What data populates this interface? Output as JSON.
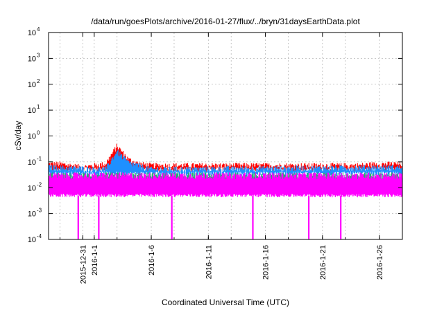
{
  "chart_data": {
    "type": "line",
    "title": "/data/run/goesPlots/archive/2016-01-27/flux/../bryn/31daysEarthData.plot",
    "xlabel": "Coordinated Universal Time (UTC)",
    "ylabel": "cSv/day",
    "yscale": "log",
    "ylim": [
      0.0001,
      10000
    ],
    "xlim": [
      "2015-12-28",
      "2016-01-28"
    ],
    "y_ticks": [
      {
        "base": "10",
        "exp": "-4",
        "value": 0.0001
      },
      {
        "base": "10",
        "exp": "-3",
        "value": 0.001
      },
      {
        "base": "10",
        "exp": "-2",
        "value": 0.01
      },
      {
        "base": "10",
        "exp": "-1",
        "value": 0.1
      },
      {
        "base": "10",
        "exp": "0",
        "value": 1
      },
      {
        "base": "10",
        "exp": "1",
        "value": 10
      },
      {
        "base": "10",
        "exp": "2",
        "value": 100
      },
      {
        "base": "10",
        "exp": "3",
        "value": 1000
      },
      {
        "base": "10",
        "exp": "4",
        "value": 10000
      }
    ],
    "x_ticks": [
      {
        "date": "2015-12-31",
        "label": "2015-12-31"
      },
      {
        "date": "2016-01-01",
        "label": "2016-1-1"
      },
      {
        "date": "2016-01-06",
        "label": "2016-1-6"
      },
      {
        "date": "2016-01-11",
        "label": "2016-1-11"
      },
      {
        "date": "2016-01-16",
        "label": "2016-1-16"
      },
      {
        "date": "2016-01-21",
        "label": "2016-1-21"
      },
      {
        "date": "2016-01-26",
        "label": "2016-1-26"
      }
    ],
    "x_grid_dates": [
      "2015-12-29",
      "2015-12-31",
      "2016-01-01",
      "2016-01-03",
      "2016-01-06",
      "2016-01-08",
      "2016-01-11",
      "2016-01-13",
      "2016-01-16",
      "2016-01-18",
      "2016-01-21",
      "2016-01-23",
      "2016-01-26",
      "2016-01-28"
    ],
    "grid": true,
    "legend": "none",
    "series": [
      {
        "color": "#ff0000",
        "baseline": 0.075,
        "envelope": [
          {
            "date": "2015-12-28",
            "y": 0.08
          },
          {
            "date": "2015-12-29",
            "y": 0.08
          },
          {
            "date": "2015-12-30",
            "y": 0.07
          },
          {
            "date": "2015-12-31",
            "y": 0.06
          },
          {
            "date": "2016-01-01",
            "y": 0.07
          },
          {
            "date": "2016-01-02",
            "y": 0.08
          },
          {
            "date": "2016-01-03",
            "y": 0.4
          },
          {
            "date": "2016-01-04",
            "y": 0.12
          },
          {
            "date": "2016-01-05",
            "y": 0.08
          },
          {
            "date": "2016-01-06",
            "y": 0.07
          },
          {
            "date": "2016-01-08",
            "y": 0.07
          },
          {
            "date": "2016-01-10",
            "y": 0.07
          },
          {
            "date": "2016-01-12",
            "y": 0.07
          },
          {
            "date": "2016-01-14",
            "y": 0.07
          },
          {
            "date": "2016-01-16",
            "y": 0.07
          },
          {
            "date": "2016-01-18",
            "y": 0.07
          },
          {
            "date": "2016-01-20",
            "y": 0.07
          },
          {
            "date": "2016-01-22",
            "y": 0.07
          },
          {
            "date": "2016-01-24",
            "y": 0.07
          },
          {
            "date": "2016-01-26",
            "y": 0.08
          },
          {
            "date": "2016-01-28",
            "y": 0.08
          }
        ]
      },
      {
        "color": "#1e90ff",
        "baseline": 0.05,
        "envelope": [
          {
            "date": "2015-12-28",
            "y": 0.06
          },
          {
            "date": "2016-01-02",
            "y": 0.05
          },
          {
            "date": "2016-01-03",
            "y": 0.25
          },
          {
            "date": "2016-01-04",
            "y": 0.09
          },
          {
            "date": "2016-01-06",
            "y": 0.05
          },
          {
            "date": "2016-01-28",
            "y": 0.06
          }
        ]
      },
      {
        "color": "#20b070",
        "baseline": 0.025,
        "envelope": [
          {
            "date": "2015-12-28",
            "y": 0.03
          },
          {
            "date": "2016-01-28",
            "y": 0.03
          }
        ]
      },
      {
        "color": "#ff00ff",
        "baseline": 0.012,
        "floor": 0.005,
        "ceiling": 0.03,
        "dropouts": [
          {
            "date": "2015-12-30.6",
            "y": 0.0001
          },
          {
            "date": "2016-01-01.4",
            "y": 0.0001
          },
          {
            "date": "2016-01-07.8",
            "y": 0.0001
          },
          {
            "date": "2016-01-14.9",
            "y": 0.0001
          },
          {
            "date": "2016-01-19.8",
            "y": 0.0001
          },
          {
            "date": "2016-01-22.6",
            "y": 0.0001
          }
        ]
      }
    ]
  }
}
